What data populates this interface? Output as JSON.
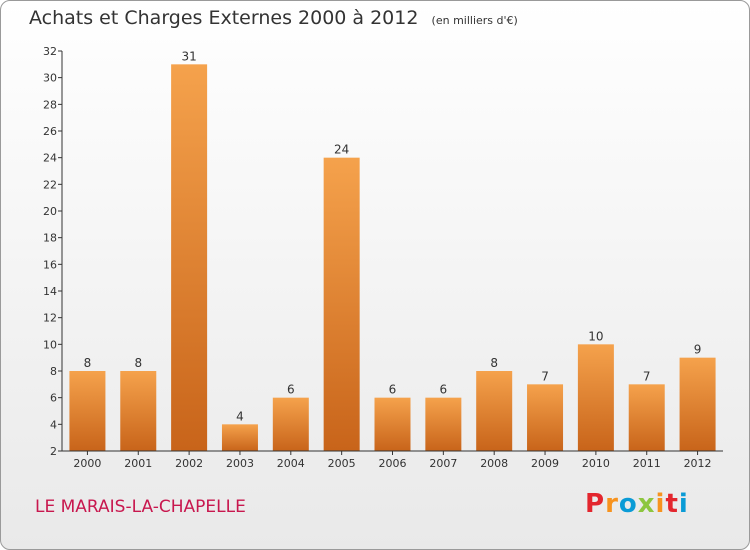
{
  "header": {
    "title": "Achats et Charges Externes 2000 à 2012",
    "unit": "(en milliers d'€)"
  },
  "footer": {
    "place": "LE MARAIS-LA-CHAPELLE",
    "logo": {
      "letters": [
        "P",
        "r",
        "o",
        "x",
        "i",
        "t",
        "i"
      ],
      "colors": [
        "#e3262e",
        "#f7931e",
        "#0a9bd6",
        "#8dc63f",
        "#f7931e",
        "#e3262e",
        "#0a9bd6"
      ]
    }
  },
  "chart_data": {
    "type": "bar",
    "categories": [
      "2000",
      "2001",
      "2002",
      "2003",
      "2004",
      "2005",
      "2006",
      "2007",
      "2008",
      "2009",
      "2010",
      "2011",
      "2012"
    ],
    "values": [
      8,
      8,
      31,
      4,
      6,
      24,
      6,
      6,
      8,
      7,
      10,
      7,
      9
    ],
    "ylim": [
      2,
      32
    ],
    "yticks": [
      2,
      4,
      6,
      8,
      10,
      12,
      14,
      16,
      18,
      20,
      22,
      24,
      26,
      28,
      30,
      32
    ],
    "grid": false,
    "colors": {
      "bar_top": "#f5a24c",
      "bar_bottom": "#c8641a",
      "axis": "#333333"
    }
  }
}
